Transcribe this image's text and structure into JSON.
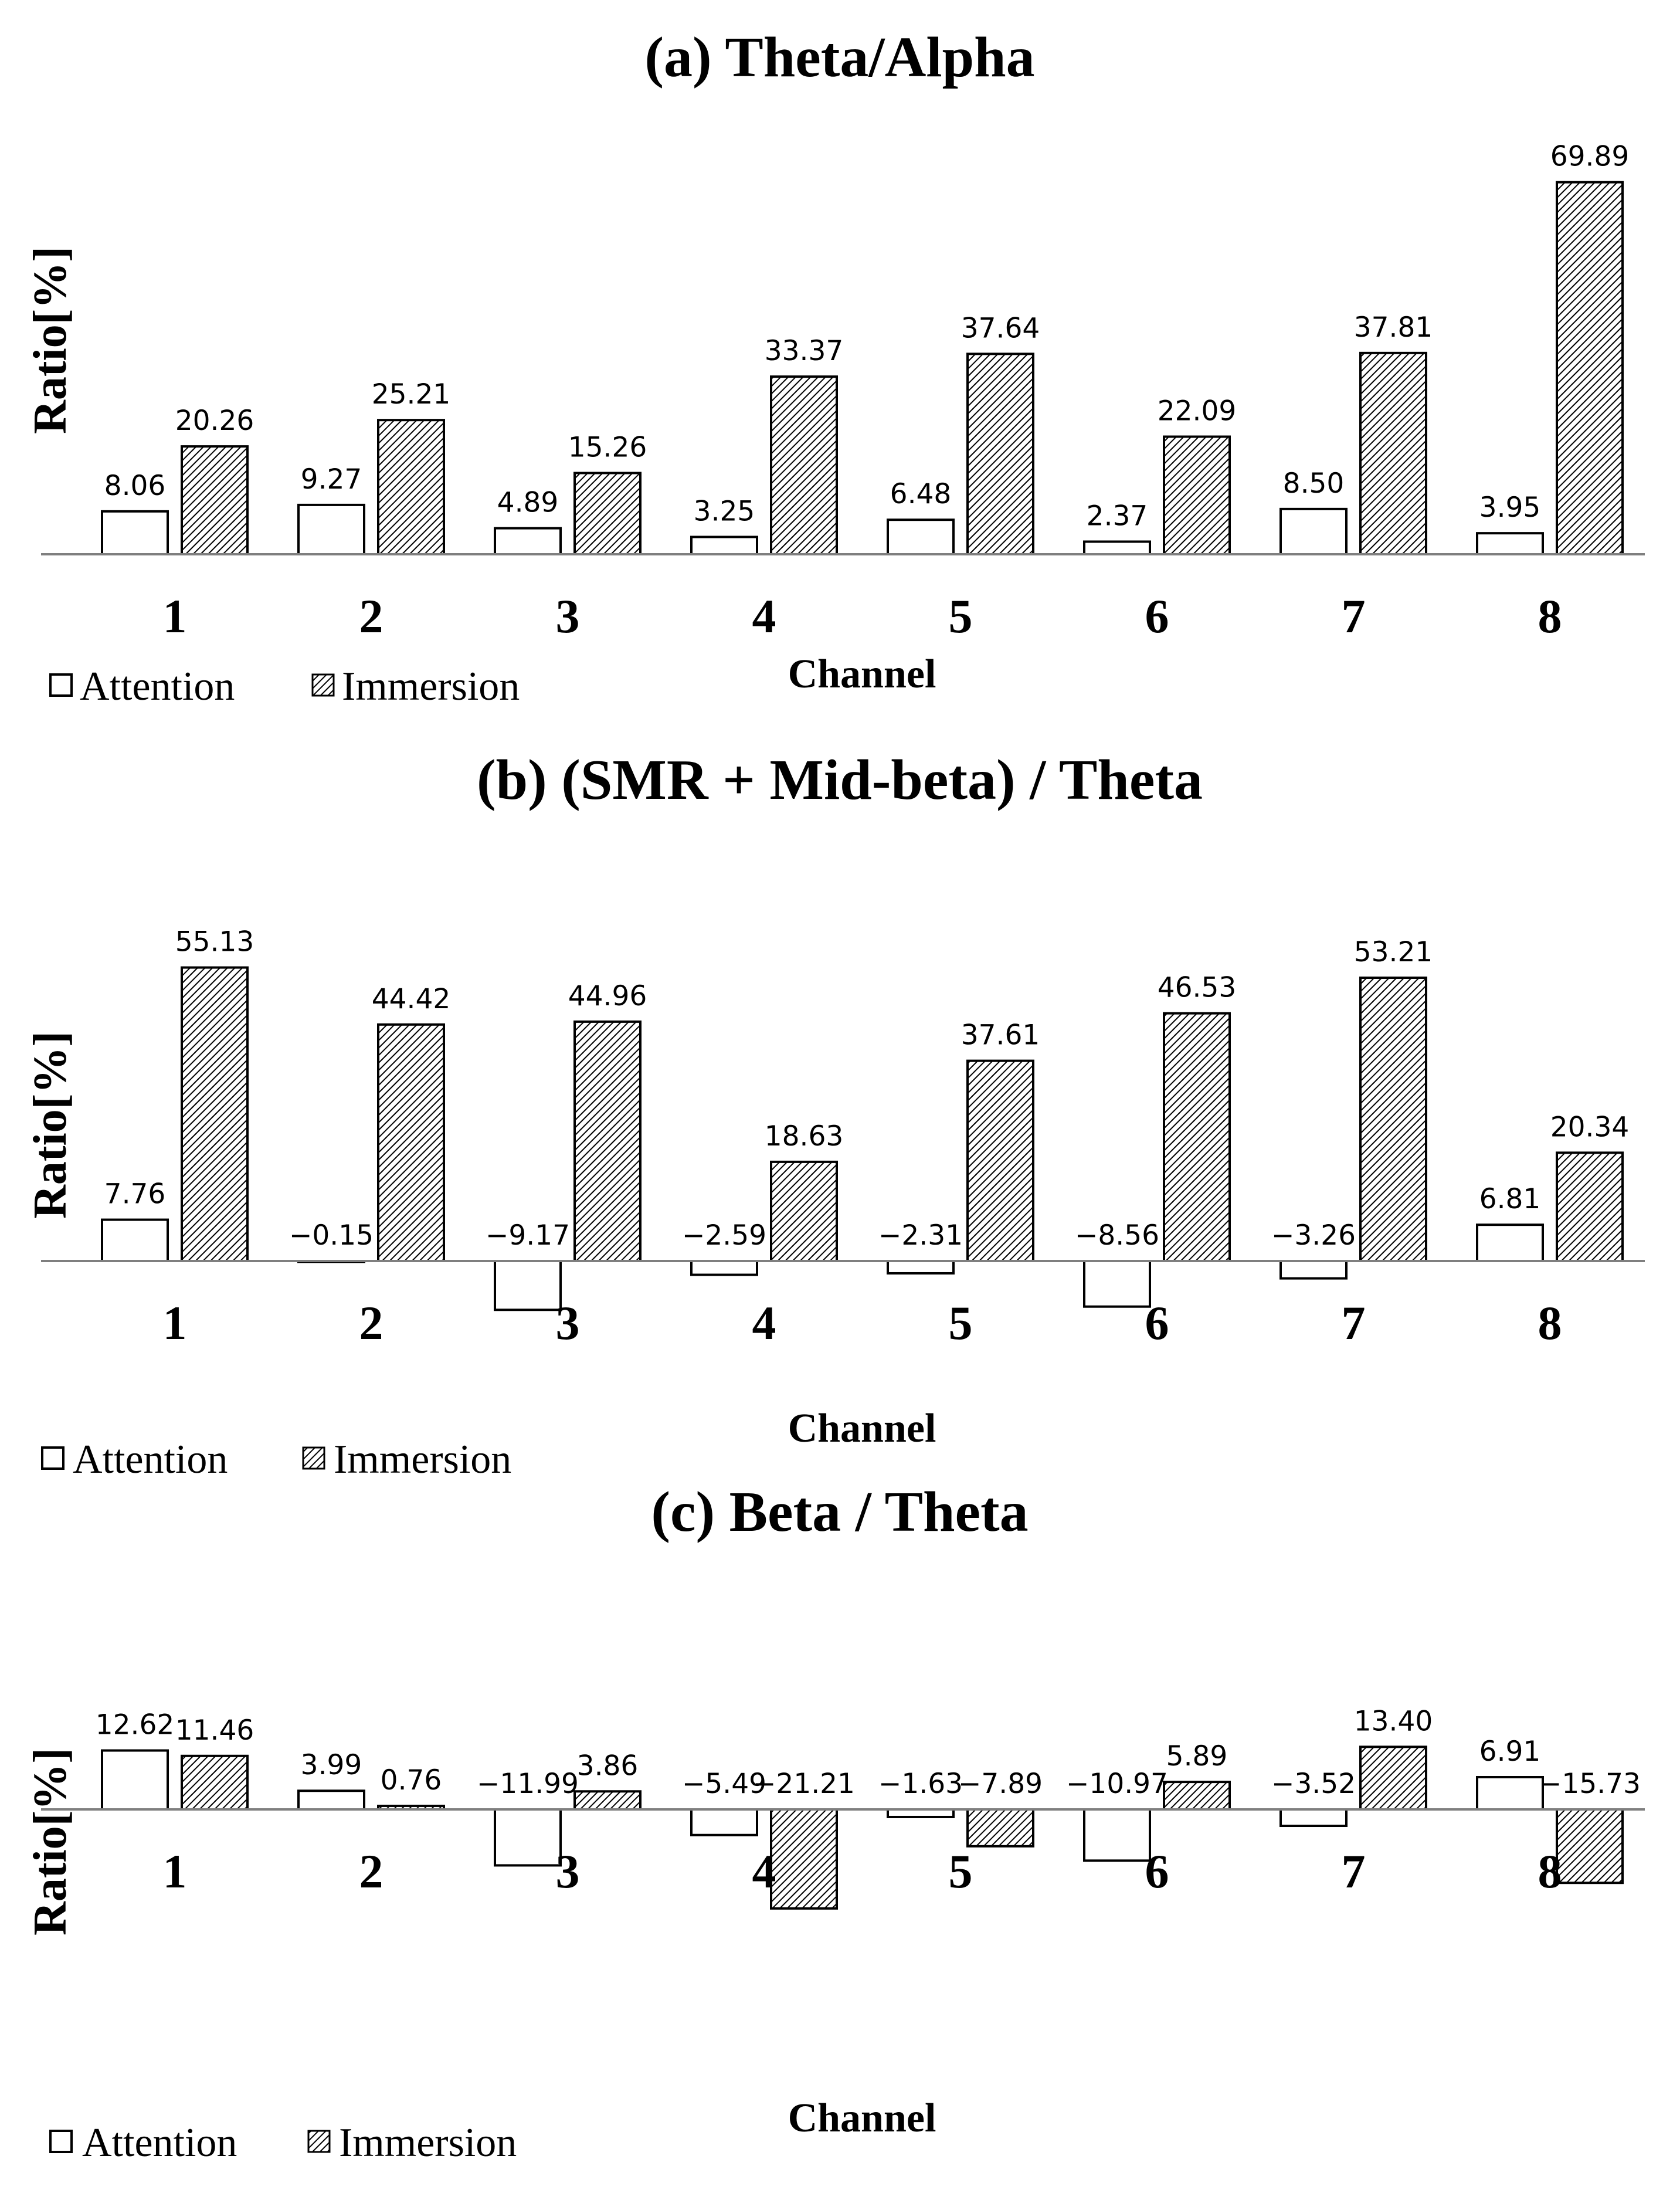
{
  "chart_data": [
    {
      "type": "bar",
      "title": "(a)  Theta/Alpha",
      "xlabel": "Channel",
      "ylabel": "Ratio[%]",
      "categories": [
        "1",
        "2",
        "3",
        "4",
        "5",
        "6",
        "7",
        "8"
      ],
      "series": [
        {
          "name": "Attention",
          "values": [
            8.06,
            9.27,
            4.89,
            3.25,
            6.48,
            2.37,
            8.5,
            3.95
          ],
          "labels": [
            "8.06",
            "9.27",
            "4.89",
            "3.25",
            "6.48",
            "2.37",
            "8.50",
            "3.95"
          ]
        },
        {
          "name": "Immersion",
          "values": [
            20.26,
            25.21,
            15.26,
            33.37,
            37.64,
            22.09,
            37.81,
            69.89
          ],
          "labels": [
            "20.26",
            "25.21",
            "15.26",
            "33.37",
            "37.64",
            "22.09",
            "37.81",
            "69.89"
          ]
        }
      ],
      "ylim": [
        0,
        70
      ],
      "grid": false,
      "legend": "bottom-left"
    },
    {
      "type": "bar",
      "title": "(b)  (SMR + Mid-beta) / Theta",
      "xlabel": "Channel",
      "ylabel": "Ratio[%]",
      "categories": [
        "1",
        "2",
        "3",
        "4",
        "5",
        "6",
        "7",
        "8"
      ],
      "series": [
        {
          "name": "Attention",
          "values": [
            7.76,
            -0.15,
            -9.17,
            -2.59,
            -2.31,
            -8.56,
            -3.26,
            6.81
          ],
          "labels": [
            "7.76",
            "−0.15",
            "−9.17",
            "−2.59",
            "−2.31",
            "−8.56",
            "−3.26",
            "6.81"
          ]
        },
        {
          "name": "Immersion",
          "values": [
            55.13,
            44.42,
            44.96,
            18.63,
            37.61,
            46.53,
            53.21,
            20.34
          ],
          "labels": [
            "55.13",
            "44.42",
            "44.96",
            "18.63",
            "37.61",
            "46.53",
            "53.21",
            "20.34"
          ]
        }
      ],
      "ylim": [
        -10,
        56
      ],
      "grid": false,
      "legend": "bottom-left"
    },
    {
      "type": "bar",
      "title": "(c)  Beta / Theta",
      "xlabel": "Channel",
      "ylabel": "Ratio[%]",
      "categories": [
        "1",
        "2",
        "3",
        "4",
        "5",
        "6",
        "7",
        "8"
      ],
      "series": [
        {
          "name": "Attention",
          "values": [
            12.62,
            3.99,
            -11.99,
            -5.49,
            -1.63,
            -10.97,
            -3.52,
            6.91
          ],
          "labels": [
            "12.62",
            "3.99",
            "−11.99",
            "−5.49",
            "−1.63",
            "−10.97",
            "−3.52",
            "6.91"
          ]
        },
        {
          "name": "Immersion",
          "values": [
            11.46,
            0.76,
            3.86,
            -21.21,
            -7.89,
            5.89,
            13.4,
            -15.73
          ],
          "labels": [
            "11.46",
            "0.76",
            "3.86",
            "−21.21",
            "−7.89",
            "5.89",
            "13.40",
            "−15.73"
          ]
        }
      ],
      "ylim": [
        -22,
        14
      ],
      "grid": false,
      "legend": "bottom-left"
    }
  ]
}
